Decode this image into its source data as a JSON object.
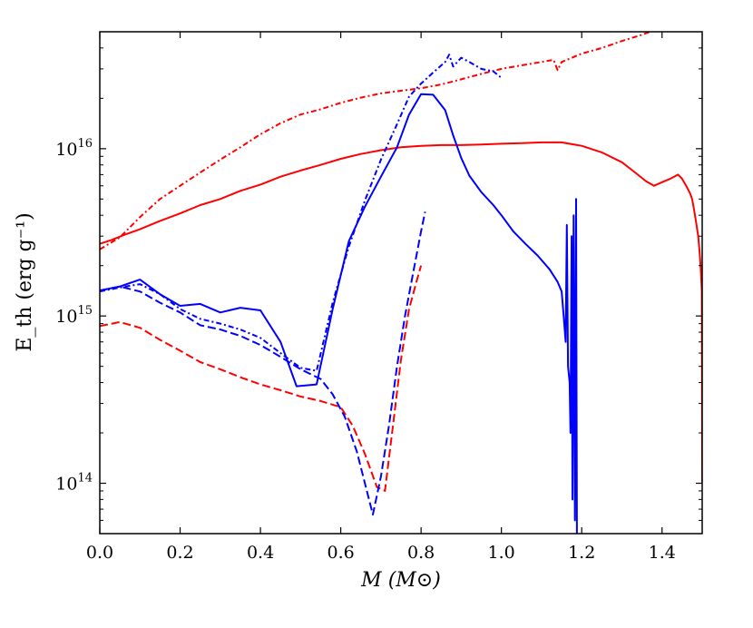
{
  "chart_data": {
    "type": "line",
    "xlabel": "M (M⊙)",
    "ylabel": "E_th (erg g⁻¹)",
    "xlim": [
      0.0,
      1.5
    ],
    "ylim": [
      50000000000000.0,
      5e+16
    ],
    "yscale": "log",
    "x_ticks": [
      0.0,
      0.2,
      0.4,
      0.6,
      0.8,
      1.0,
      1.2,
      1.4
    ],
    "x_tick_labels": [
      "0.0",
      "0.2",
      "0.4",
      "0.6",
      "0.8",
      "1.0",
      "1.2",
      "1.4"
    ],
    "y_ticks": [
      100000000000000.0,
      1000000000000000.0,
      1e+16
    ],
    "y_tick_labels": [
      {
        "base": "10",
        "exp": "14"
      },
      {
        "base": "10",
        "exp": "15"
      },
      {
        "base": "10",
        "exp": "16"
      }
    ],
    "grid": false,
    "series": [
      {
        "name": "red-solid",
        "color": "#ff0000",
        "style": "solid",
        "points": [
          [
            0.0,
            2700000000000000.0
          ],
          [
            0.03,
            2850000000000000.0
          ],
          [
            0.06,
            3050000000000000.0
          ],
          [
            0.1,
            3300000000000000.0
          ],
          [
            0.15,
            3700000000000000.0
          ],
          [
            0.2,
            4100000000000000.0
          ],
          [
            0.25,
            4600000000000000.0
          ],
          [
            0.3,
            5000000000000000.0
          ],
          [
            0.35,
            5600000000000000.0
          ],
          [
            0.4,
            6100000000000000.0
          ],
          [
            0.45,
            6800000000000000.0
          ],
          [
            0.5,
            7400000000000000.0
          ],
          [
            0.55,
            8000000000000000.0
          ],
          [
            0.6,
            8700000000000000.0
          ],
          [
            0.65,
            9300000000000000.0
          ],
          [
            0.7,
            9800000000000000.0
          ],
          [
            0.75,
            1.02e+16
          ],
          [
            0.8,
            1.04e+16
          ],
          [
            0.85,
            1.05e+16
          ],
          [
            0.9,
            1.05e+16
          ],
          [
            0.95,
            1.06e+16
          ],
          [
            1.0,
            1.07e+16
          ],
          [
            1.05,
            1.08e+16
          ],
          [
            1.1,
            1.09e+16
          ],
          [
            1.15,
            1.09e+16
          ],
          [
            1.2,
            1.04e+16
          ],
          [
            1.25,
            9500000000000000.0
          ],
          [
            1.3,
            8300000000000000.0
          ],
          [
            1.33,
            7300000000000000.0
          ],
          [
            1.36,
            6400000000000000.0
          ],
          [
            1.38,
            6000000000000000.0
          ],
          [
            1.4,
            6300000000000000.0
          ],
          [
            1.42,
            6600000000000000.0
          ],
          [
            1.44,
            7000000000000000.0
          ],
          [
            1.45,
            6600000000000000.0
          ],
          [
            1.46,
            6000000000000000.0
          ],
          [
            1.47,
            5400000000000000.0
          ],
          [
            1.475,
            5000000000000000.0
          ],
          [
            1.48,
            4300000000000000.0
          ],
          [
            1.485,
            3600000000000000.0
          ],
          [
            1.49,
            3000000000000000.0
          ],
          [
            1.493,
            2500000000000000.0
          ],
          [
            1.496,
            2000000000000000.0
          ],
          [
            1.499,
            1400000000000000.0
          ],
          [
            1.5,
            100000000000000.0
          ]
        ]
      },
      {
        "name": "red-dashdot",
        "color": "#ff0000",
        "style": "dashdot",
        "points": [
          [
            0.0,
            2500000000000000.0
          ],
          [
            0.05,
            2950000000000000.0
          ],
          [
            0.1,
            3900000000000000.0
          ],
          [
            0.15,
            5000000000000000.0
          ],
          [
            0.2,
            6000000000000000.0
          ],
          [
            0.25,
            7200000000000000.0
          ],
          [
            0.3,
            8600000000000000.0
          ],
          [
            0.35,
            1.02e+16
          ],
          [
            0.4,
            1.22e+16
          ],
          [
            0.45,
            1.42e+16
          ],
          [
            0.5,
            1.6e+16
          ],
          [
            0.55,
            1.72e+16
          ],
          [
            0.6,
            1.88e+16
          ],
          [
            0.65,
            2.02e+16
          ],
          [
            0.7,
            2.14e+16
          ],
          [
            0.75,
            2.22e+16
          ],
          [
            0.8,
            2.3e+16
          ],
          [
            0.85,
            2.42e+16
          ],
          [
            0.9,
            2.6e+16
          ],
          [
            0.95,
            2.8e+16
          ],
          [
            1.0,
            3e+16
          ],
          [
            1.05,
            3.15e+16
          ],
          [
            1.1,
            3.3e+16
          ],
          [
            1.13,
            3.4e+16
          ],
          [
            1.14,
            2.95e+16
          ],
          [
            1.15,
            3.3e+16
          ],
          [
            1.2,
            3.7e+16
          ],
          [
            1.25,
            4e+16
          ],
          [
            1.3,
            4.4e+16
          ],
          [
            1.35,
            4.8e+16
          ],
          [
            1.38,
            5.1e+16
          ]
        ]
      },
      {
        "name": "red-dashed",
        "color": "#ff0000",
        "style": "dashed",
        "points": [
          [
            0.0,
            870000000000000.0
          ],
          [
            0.05,
            920000000000000.0
          ],
          [
            0.1,
            850000000000000.0
          ],
          [
            0.15,
            720000000000000.0
          ],
          [
            0.2,
            620000000000000.0
          ],
          [
            0.25,
            530000000000000.0
          ],
          [
            0.3,
            480000000000000.0
          ],
          [
            0.35,
            430000000000000.0
          ],
          [
            0.4,
            390000000000000.0
          ],
          [
            0.45,
            360000000000000.0
          ],
          [
            0.5,
            330000000000000.0
          ],
          [
            0.55,
            310000000000000.0
          ],
          [
            0.6,
            285000000000000.0
          ],
          [
            0.63,
            220000000000000.0
          ],
          [
            0.66,
            150000000000000.0
          ],
          [
            0.69,
            95000000000000.0
          ],
          [
            0.71,
            90000000000000.0
          ],
          [
            0.73,
            220000000000000.0
          ],
          [
            0.75,
            550000000000000.0
          ],
          [
            0.77,
            1100000000000000.0
          ],
          [
            0.79,
            1650000000000000.0
          ],
          [
            0.8,
            2000000000000000.0
          ]
        ]
      },
      {
        "name": "blue-solid",
        "color": "#0000ff",
        "style": "solid",
        "points": [
          [
            0.0,
            1420000000000000.0
          ],
          [
            0.05,
            1500000000000000.0
          ],
          [
            0.1,
            1650000000000000.0
          ],
          [
            0.15,
            1350000000000000.0
          ],
          [
            0.2,
            1150000000000000.0
          ],
          [
            0.25,
            1180000000000000.0
          ],
          [
            0.3,
            1050000000000000.0
          ],
          [
            0.35,
            1120000000000000.0
          ],
          [
            0.4,
            1080000000000000.0
          ],
          [
            0.45,
            700000000000000.0
          ],
          [
            0.49,
            380000000000000.0
          ],
          [
            0.54,
            390000000000000.0
          ],
          [
            0.58,
            1100000000000000.0
          ],
          [
            0.62,
            2800000000000000.0
          ],
          [
            0.66,
            4500000000000000.0
          ],
          [
            0.7,
            6800000000000000.0
          ],
          [
            0.74,
            1.02e+16
          ],
          [
            0.77,
            1.6e+16
          ],
          [
            0.8,
            2.12e+16
          ],
          [
            0.83,
            2.1e+16
          ],
          [
            0.86,
            1.7e+16
          ],
          [
            0.88,
            1.2e+16
          ],
          [
            0.9,
            8800000000000000.0
          ],
          [
            0.92,
            6900000000000000.0
          ],
          [
            0.95,
            5500000000000000.0
          ],
          [
            0.98,
            4600000000000000.0
          ],
          [
            1.0,
            4000000000000000.0
          ],
          [
            1.03,
            3200000000000000.0
          ],
          [
            1.06,
            2700000000000000.0
          ],
          [
            1.09,
            2300000000000000.0
          ],
          [
            1.12,
            1900000000000000.0
          ],
          [
            1.14,
            1600000000000000.0
          ],
          [
            1.15,
            1400000000000000.0
          ],
          [
            1.155,
            1000000000000000.0
          ],
          [
            1.16,
            700000000000000.0
          ],
          [
            1.163,
            3500000000000000.0
          ],
          [
            1.166,
            500000000000000.0
          ],
          [
            1.17,
            400000000000000.0
          ],
          [
            1.172,
            200000000000000.0
          ],
          [
            1.175,
            3000000000000000.0
          ],
          [
            1.177,
            80000000000000.0
          ],
          [
            1.18,
            4000000000000000.0
          ],
          [
            1.183,
            60000000000000.0
          ],
          [
            1.186,
            5000000000000000.0
          ],
          [
            1.188,
            50000000000000.0
          ],
          [
            1.19,
            50000000000000.0
          ]
        ]
      },
      {
        "name": "blue-dashdot",
        "color": "#0000ff",
        "style": "dashdot",
        "points": [
          [
            0.0,
            1400000000000000.0
          ],
          [
            0.05,
            1480000000000000.0
          ],
          [
            0.1,
            1550000000000000.0
          ],
          [
            0.15,
            1350000000000000.0
          ],
          [
            0.2,
            1100000000000000.0
          ],
          [
            0.25,
            960000000000000.0
          ],
          [
            0.3,
            900000000000000.0
          ],
          [
            0.35,
            830000000000000.0
          ],
          [
            0.4,
            740000000000000.0
          ],
          [
            0.45,
            600000000000000.0
          ],
          [
            0.5,
            490000000000000.0
          ],
          [
            0.54,
            470000000000000.0
          ],
          [
            0.58,
            1200000000000000.0
          ],
          [
            0.62,
            2600000000000000.0
          ],
          [
            0.66,
            4900000000000000.0
          ],
          [
            0.7,
            8600000000000000.0
          ],
          [
            0.74,
            1.4e+16
          ],
          [
            0.77,
            2.05e+16
          ],
          [
            0.8,
            2.45e+16
          ],
          [
            0.83,
            2.85e+16
          ],
          [
            0.86,
            3.3e+16
          ],
          [
            0.87,
            3.65e+16
          ],
          [
            0.88,
            3.1e+16
          ],
          [
            0.9,
            3.5e+16
          ],
          [
            0.92,
            3.3e+16
          ],
          [
            0.95,
            3e+16
          ],
          [
            0.98,
            2.9e+16
          ],
          [
            1.0,
            2.65e+16
          ]
        ]
      },
      {
        "name": "blue-dashed",
        "color": "#0000ff",
        "style": "dashed",
        "points": [
          [
            0.0,
            1420000000000000.0
          ],
          [
            0.05,
            1500000000000000.0
          ],
          [
            0.1,
            1400000000000000.0
          ],
          [
            0.15,
            1200000000000000.0
          ],
          [
            0.2,
            1050000000000000.0
          ],
          [
            0.25,
            880000000000000.0
          ],
          [
            0.3,
            830000000000000.0
          ],
          [
            0.35,
            760000000000000.0
          ],
          [
            0.4,
            670000000000000.0
          ],
          [
            0.45,
            570000000000000.0
          ],
          [
            0.5,
            480000000000000.0
          ],
          [
            0.55,
            420000000000000.0
          ],
          [
            0.58,
            340000000000000.0
          ],
          [
            0.61,
            250000000000000.0
          ],
          [
            0.64,
            155000000000000.0
          ],
          [
            0.66,
            100000000000000.0
          ],
          [
            0.68,
            65000000000000.0
          ],
          [
            0.7,
            110000000000000.0
          ],
          [
            0.72,
            220000000000000.0
          ],
          [
            0.74,
            500000000000000.0
          ],
          [
            0.76,
            1000000000000000.0
          ],
          [
            0.78,
            1800000000000000.0
          ],
          [
            0.8,
            3200000000000000.0
          ],
          [
            0.81,
            4200000000000000.0
          ]
        ]
      }
    ]
  }
}
